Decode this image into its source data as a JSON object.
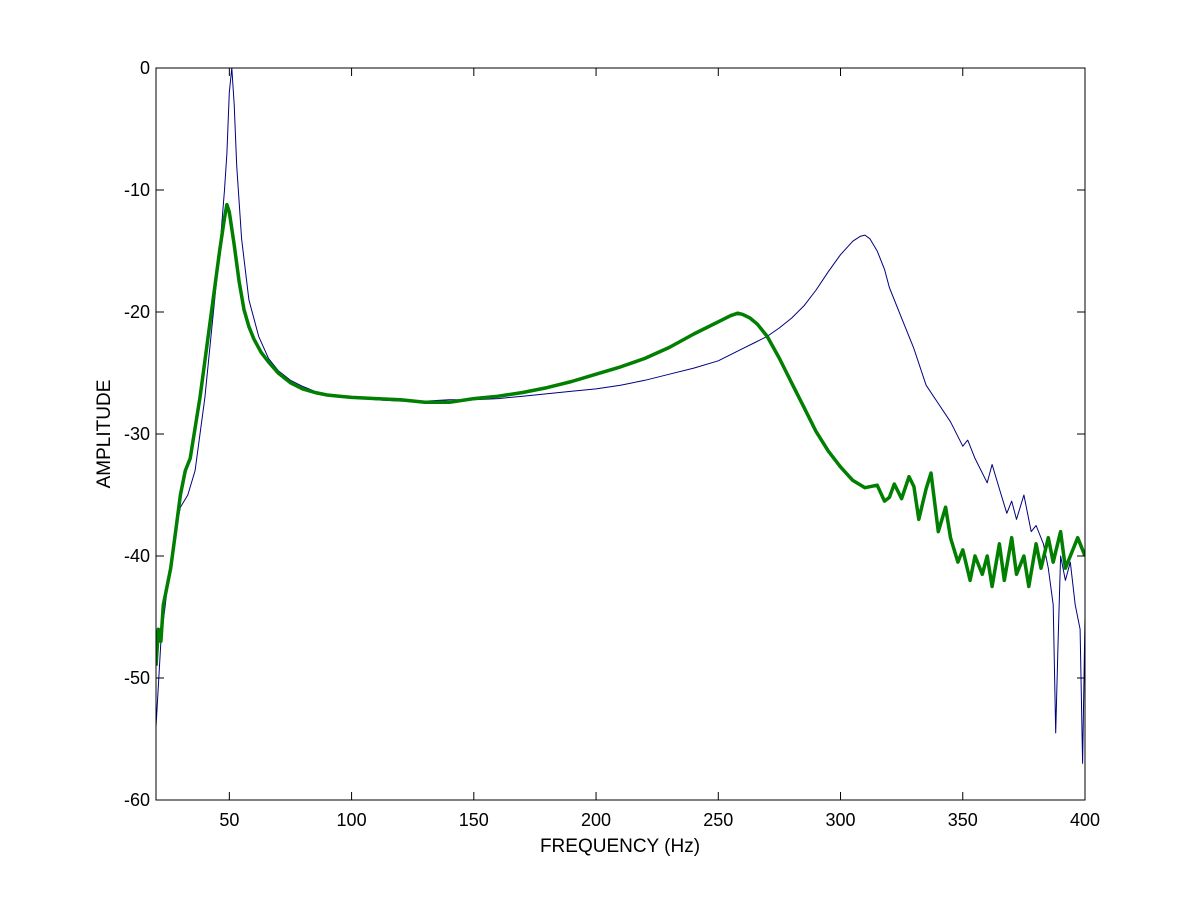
{
  "chart_data": {
    "type": "line",
    "title": "",
    "xlabel": "FREQUENCY (Hz)",
    "ylabel": "AMPLITUDE",
    "xlim": [
      20,
      400
    ],
    "ylim": [
      -60,
      0
    ],
    "xticks": [
      50,
      100,
      150,
      200,
      250,
      300,
      350,
      400
    ],
    "yticks": [
      0,
      -10,
      -20,
      -30,
      -40,
      -50,
      -60
    ],
    "grid": false,
    "legend": "none",
    "series": [
      {
        "color": "#00007f",
        "line_width": "thin",
        "x": [
          20,
          22,
          25,
          28,
          30,
          33,
          36,
          40,
          43,
          46,
          48,
          49,
          50,
          51,
          52,
          53,
          55,
          58,
          62,
          66,
          70,
          75,
          80,
          85,
          90,
          95,
          100,
          110,
          120,
          130,
          140,
          150,
          160,
          170,
          180,
          190,
          200,
          210,
          220,
          230,
          240,
          250,
          260,
          265,
          270,
          275,
          280,
          285,
          290,
          295,
          300,
          305,
          308,
          310,
          312,
          315,
          318,
          320,
          325,
          330,
          335,
          340,
          345,
          350,
          352,
          355,
          360,
          362,
          365,
          368,
          370,
          372,
          375,
          378,
          380,
          383,
          385,
          387,
          388,
          389,
          390,
          392,
          394,
          396,
          398,
          399,
          400
        ],
        "y": [
          -54,
          -47,
          -42,
          -38,
          -36,
          -35,
          -33,
          -27,
          -21,
          -15,
          -10,
          -7,
          -2,
          0,
          -3,
          -8,
          -14,
          -19,
          -22,
          -23.8,
          -24.8,
          -25.6,
          -26.1,
          -26.5,
          -26.8,
          -26.9,
          -27,
          -27.2,
          -27.3,
          -27.3,
          -27.2,
          -27.2,
          -27.1,
          -26.9,
          -26.7,
          -26.5,
          -26.3,
          -26,
          -25.6,
          -25.1,
          -24.6,
          -24,
          -23,
          -22.5,
          -22,
          -21.3,
          -20.5,
          -19.5,
          -18.2,
          -16.7,
          -15.3,
          -14.2,
          -13.8,
          -13.7,
          -14,
          -15,
          -16.5,
          -18,
          -20.5,
          -23,
          -26,
          -27.5,
          -29,
          -31,
          -30.5,
          -32,
          -34,
          -32.5,
          -34.5,
          -36.5,
          -35.5,
          -37,
          -35,
          -38,
          -37.5,
          -39,
          -41,
          -44,
          -54.5,
          -47,
          -40,
          -42,
          -40.5,
          -44,
          -46,
          -57,
          -45
        ]
      },
      {
        "color": "#007f00",
        "line_width": "thick",
        "x": [
          20,
          21,
          22,
          23,
          24,
          26,
          28,
          30,
          32,
          34,
          36,
          38,
          40,
          42,
          44,
          46,
          48,
          49,
          50,
          52,
          54,
          56,
          58,
          60,
          63,
          66,
          70,
          75,
          80,
          85,
          90,
          95,
          100,
          110,
          120,
          130,
          140,
          150,
          160,
          170,
          180,
          190,
          200,
          210,
          220,
          230,
          240,
          250,
          255,
          258,
          260,
          263,
          266,
          270,
          275,
          280,
          285,
          290,
          295,
          300,
          305,
          310,
          315,
          318,
          320,
          322,
          325,
          328,
          330,
          332,
          335,
          337,
          340,
          343,
          345,
          348,
          350,
          353,
          355,
          358,
          360,
          362,
          365,
          367,
          370,
          372,
          375,
          377,
          380,
          382,
          385,
          387,
          390,
          392,
          395,
          397,
          400
        ],
        "y": [
          -49,
          -46,
          -47,
          -44,
          -43,
          -41,
          -38,
          -35,
          -33,
          -32,
          -29.5,
          -27,
          -24,
          -21,
          -18,
          -15,
          -12.3,
          -11.2,
          -11.8,
          -14.5,
          -17.5,
          -19.8,
          -21.2,
          -22.2,
          -23.3,
          -24.1,
          -25,
          -25.8,
          -26.3,
          -26.6,
          -26.8,
          -26.9,
          -27,
          -27.1,
          -27.2,
          -27.4,
          -27.4,
          -27.1,
          -26.9,
          -26.6,
          -26.2,
          -25.7,
          -25.1,
          -24.5,
          -23.8,
          -22.9,
          -21.8,
          -20.8,
          -20.3,
          -20.1,
          -20.2,
          -20.5,
          -21,
          -22,
          -23.8,
          -25.8,
          -27.8,
          -29.8,
          -31.4,
          -32.7,
          -33.8,
          -34.4,
          -34.2,
          -35.5,
          -35.2,
          -34.1,
          -35.3,
          -33.5,
          -34.3,
          -37,
          -34.5,
          -33.2,
          -38,
          -36,
          -38.5,
          -40.5,
          -39.5,
          -42,
          -40,
          -41.5,
          -40,
          -42.5,
          -39,
          -42,
          -38.5,
          -41.5,
          -40,
          -42.5,
          -39,
          -41,
          -38.5,
          -40.5,
          -38,
          -41,
          -39.5,
          -38.5,
          -40
        ]
      }
    ]
  }
}
